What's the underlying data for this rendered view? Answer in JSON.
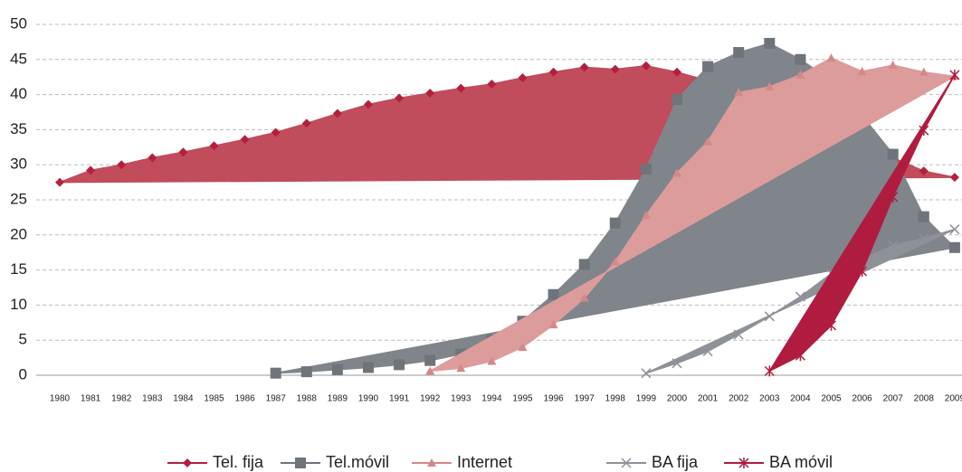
{
  "chart_data": {
    "type": "area",
    "categories": [
      "1980",
      "1981",
      "1982",
      "1983",
      "1984",
      "1985",
      "1986",
      "1987",
      "1988",
      "1989",
      "1990",
      "1991",
      "1992",
      "1993",
      "1994",
      "1995",
      "1996",
      "1997",
      "1998",
      "1999",
      "2000",
      "2001",
      "2002",
      "2003",
      "2004",
      "2005",
      "2006",
      "2007",
      "2008",
      "2009"
    ],
    "ylim": [
      0,
      50
    ],
    "yticks": [
      0,
      5,
      10,
      15,
      20,
      25,
      30,
      35,
      40,
      45,
      50
    ],
    "grid": true,
    "series": [
      {
        "name": "Tel. fija",
        "color": "#c04c5c",
        "marker": "diamond",
        "values": [
          27.5,
          29.2,
          30,
          31,
          31.8,
          32.7,
          33.6,
          34.6,
          35.9,
          37.3,
          38.6,
          39.5,
          40.2,
          40.9,
          41.5,
          42.4,
          43.2,
          43.9,
          43.6,
          44.1,
          43.2,
          42,
          41,
          40,
          38,
          36,
          33,
          31,
          29.1,
          28.2
        ]
      },
      {
        "name": "Tel.móvil",
        "color": "#80848b",
        "marker": "square",
        "values": [
          null,
          null,
          null,
          null,
          null,
          null,
          null,
          0.3,
          0.5,
          0.8,
          1.1,
          1.5,
          2.1,
          3,
          5,
          7.7,
          11.5,
          15.8,
          21.7,
          29.4,
          39.3,
          44,
          46,
          47.3,
          45,
          42,
          37,
          31.5,
          22.6,
          18.2
        ]
      },
      {
        "name": "Internet",
        "color": "#dc9c9c",
        "marker": "triangle",
        "values": [
          null,
          null,
          null,
          null,
          null,
          null,
          null,
          null,
          null,
          null,
          null,
          null,
          0.6,
          1,
          2,
          4,
          7.2,
          11,
          16.2,
          22.8,
          28.8,
          33.3,
          40.3,
          41.1,
          42.8,
          45.2,
          43.3,
          44.2,
          43.2,
          42.6
        ]
      },
      {
        "name": "BA fija",
        "color": "#8e9298",
        "marker": "x",
        "values": [
          null,
          null,
          null,
          null,
          null,
          null,
          null,
          null,
          null,
          null,
          null,
          null,
          null,
          null,
          null,
          null,
          null,
          null,
          null,
          0.3,
          1.7,
          3.4,
          5.8,
          8.4,
          11.2,
          14.5,
          16.5,
          18.5,
          19.5,
          20.8
        ]
      },
      {
        "name": "BA móvil",
        "color": "#b01c40",
        "marker": "star",
        "values": [
          null,
          null,
          null,
          null,
          null,
          null,
          null,
          null,
          null,
          null,
          null,
          null,
          null,
          null,
          null,
          null,
          null,
          null,
          null,
          null,
          null,
          null,
          null,
          0.6,
          2.8,
          7.1,
          14.8,
          25.4,
          34.9,
          42.8
        ]
      }
    ]
  }
}
